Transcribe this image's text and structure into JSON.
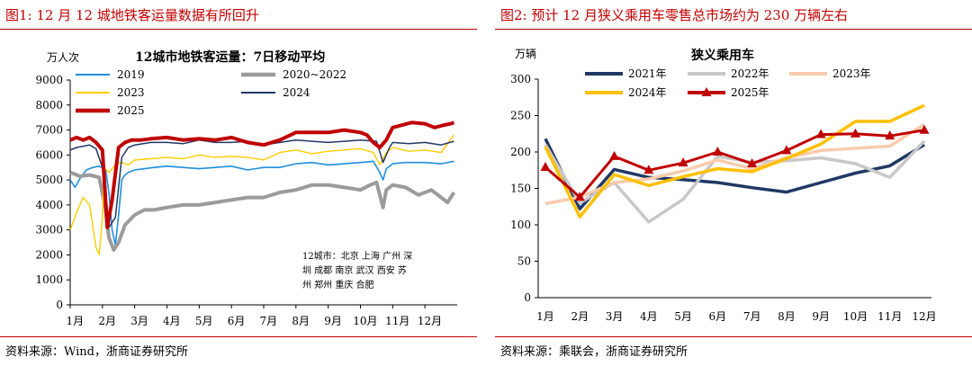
{
  "left_panel": {
    "figure_title": "图1:   12 月 12 城地铁客运量数据有所回升",
    "source": "资料来源：Wind，浙商证券研究所"
  },
  "right_panel": {
    "figure_title": "图2:   预计 12 月狭义乘用车零售总市场约为 230 万辆左右",
    "source": "资料来源：乘联会，浙商证券研究所"
  },
  "chart_data": [
    {
      "type": "line",
      "title": "12城市地铁客运量：7日移动平均",
      "ylabel": "万人次",
      "xlabel": "",
      "ylim": [
        0,
        9000
      ],
      "yticks": [
        0,
        1000,
        2000,
        3000,
        4000,
        5000,
        6000,
        7000,
        8000,
        9000
      ],
      "xlim": [
        0,
        12
      ],
      "categories": [
        "1月",
        "2月",
        "3月",
        "4月",
        "5月",
        "6月",
        "7月",
        "8月",
        "9月",
        "10月",
        "11月",
        "12月"
      ],
      "annotation": [
        "12城市：北京 上海 广州 深",
        "圳 成都 南京 武汉 西安 苏",
        "州 郑州 重庆 合肥"
      ],
      "legend_position": "top",
      "series": [
        {
          "name": "2019",
          "color": "#1f8fdc",
          "x": [
            0,
            0.15,
            0.3,
            0.5,
            0.7,
            0.9,
            1.1,
            1.2,
            1.3,
            1.4,
            1.5,
            1.6,
            1.7,
            1.8,
            2.0,
            2.3,
            2.6,
            3.0,
            3.5,
            4.0,
            4.5,
            5.0,
            5.5,
            6.0,
            6.5,
            7.0,
            7.5,
            8.0,
            8.5,
            9.0,
            9.4,
            9.6,
            9.7,
            9.8,
            10.0,
            10.4,
            11.0,
            11.5,
            11.9
          ],
          "values": [
            5000,
            4700,
            5050,
            5400,
            5500,
            5550,
            5400,
            4500,
            3000,
            2400,
            3600,
            5000,
            5200,
            5300,
            5400,
            5450,
            5500,
            5550,
            5500,
            5450,
            5500,
            5550,
            5400,
            5500,
            5500,
            5650,
            5700,
            5600,
            5650,
            5700,
            5750,
            5300,
            5000,
            5450,
            5650,
            5700,
            5700,
            5650,
            5750
          ]
        },
        {
          "name": "2020~2022",
          "color": "#9b9b9b",
          "x": [
            0,
            0.3,
            0.6,
            0.9,
            1.1,
            1.2,
            1.35,
            1.5,
            1.7,
            2.0,
            2.3,
            2.6,
            3.0,
            3.5,
            4.0,
            4.5,
            5.0,
            5.5,
            6.0,
            6.5,
            7.0,
            7.5,
            8.0,
            8.5,
            9.0,
            9.3,
            9.5,
            9.6,
            9.7,
            9.8,
            10.0,
            10.4,
            10.8,
            11.2,
            11.5,
            11.7,
            11.9
          ],
          "values": [
            5300,
            5150,
            5200,
            5100,
            3800,
            2700,
            2200,
            2500,
            3200,
            3600,
            3800,
            3800,
            3900,
            4000,
            4000,
            4100,
            4200,
            4300,
            4300,
            4500,
            4600,
            4800,
            4800,
            4700,
            4600,
            4800,
            4900,
            4400,
            3900,
            4600,
            4800,
            4700,
            4400,
            4600,
            4300,
            4100,
            4500
          ]
        },
        {
          "name": "2023",
          "color": "#ffcc00",
          "x": [
            0,
            0.2,
            0.4,
            0.6,
            0.8,
            0.9,
            1.0,
            1.05,
            1.2,
            1.4,
            1.6,
            1.8,
            2.0,
            2.5,
            3.0,
            3.5,
            4.0,
            4.5,
            5.0,
            5.5,
            6.0,
            6.5,
            7.0,
            7.5,
            8.0,
            8.5,
            9.0,
            9.4,
            9.6,
            9.8,
            10.0,
            10.5,
            11.0,
            11.5,
            11.9
          ],
          "values": [
            3000,
            3700,
            4300,
            4000,
            2300,
            2000,
            3500,
            5500,
            5300,
            5600,
            5700,
            5600,
            5800,
            5850,
            5900,
            5850,
            6000,
            5900,
            5950,
            5900,
            5800,
            6100,
            6200,
            6050,
            6150,
            6200,
            6250,
            6100,
            5600,
            6100,
            6300,
            6150,
            6200,
            6100,
            6800
          ]
        },
        {
          "name": "2024",
          "color": "#203864",
          "x": [
            0,
            0.2,
            0.4,
            0.6,
            0.8,
            1.0,
            1.2,
            1.4,
            1.6,
            1.8,
            2.0,
            2.5,
            3.0,
            3.5,
            4.0,
            4.5,
            5.0,
            5.5,
            6.0,
            6.5,
            7.0,
            7.5,
            8.0,
            8.5,
            9.0,
            9.5,
            9.7,
            9.9,
            10.0,
            10.5,
            11.0,
            11.5,
            11.9
          ],
          "values": [
            6200,
            6300,
            6350,
            6400,
            6250,
            5500,
            3100,
            3500,
            5900,
            6300,
            6400,
            6500,
            6500,
            6450,
            6600,
            6500,
            6500,
            6550,
            6400,
            6500,
            6600,
            6550,
            6500,
            6550,
            6600,
            6550,
            5700,
            6300,
            6500,
            6450,
            6500,
            6400,
            6550
          ]
        },
        {
          "name": "2025",
          "color": "#c00000",
          "x": [
            0,
            0.2,
            0.4,
            0.6,
            0.8,
            1.0,
            1.15,
            1.3,
            1.5,
            1.7,
            1.9,
            2.2,
            2.5,
            3.0,
            3.5,
            4.0,
            4.5,
            5.0,
            5.5,
            6.0,
            6.5,
            7.0,
            7.5,
            8.0,
            8.5,
            9.0,
            9.2,
            9.4,
            9.6,
            9.8,
            10.0,
            10.3,
            10.6,
            11.0,
            11.3,
            11.6,
            11.8,
            11.9
          ],
          "values": [
            6600,
            6700,
            6600,
            6700,
            6500,
            6200,
            3100,
            4200,
            6300,
            6500,
            6600,
            6600,
            6650,
            6700,
            6600,
            6650,
            6600,
            6700,
            6500,
            6400,
            6600,
            6900,
            6900,
            6900,
            7000,
            6900,
            6800,
            6500,
            6300,
            6600,
            7100,
            7200,
            7300,
            7250,
            7100,
            7200,
            7250,
            7300
          ]
        }
      ]
    },
    {
      "type": "line",
      "title": "狭义乘用车",
      "ylabel": "万辆",
      "xlabel": "",
      "ylim": [
        0,
        300
      ],
      "yticks": [
        0,
        50,
        100,
        150,
        200,
        250,
        300
      ],
      "categories": [
        "1月",
        "2月",
        "3月",
        "4月",
        "5月",
        "6月",
        "7月",
        "8月",
        "9月",
        "10月",
        "11月",
        "12月"
      ],
      "legend_position": "top",
      "series": [
        {
          "name": "2021年",
          "color": "#203864",
          "values": [
            218,
            122,
            176,
            165,
            162,
            158,
            151,
            145,
            158,
            171,
            181,
            210
          ]
        },
        {
          "name": "2022年",
          "color": "#c8c8c8",
          "values": [
            210,
            130,
            158,
            104,
            135,
            194,
            186,
            188,
            192,
            184,
            165,
            215
          ]
        },
        {
          "name": "2023年",
          "color": "#f8cbad",
          "values": [
            129,
            138,
            158,
            163,
            174,
            189,
            177,
            192,
            202,
            205,
            208,
            238
          ]
        },
        {
          "name": "2024年",
          "color": "#ffc000",
          "values": [
            207,
            111,
            169,
            154,
            166,
            177,
            173,
            191,
            211,
            242,
            242,
            264
          ]
        },
        {
          "name": "2025年",
          "color": "#c00000",
          "marker": "triangle",
          "values": [
            179,
            138,
            194,
            175,
            185,
            200,
            184,
            202,
            224,
            225,
            222,
            230
          ]
        }
      ]
    }
  ]
}
